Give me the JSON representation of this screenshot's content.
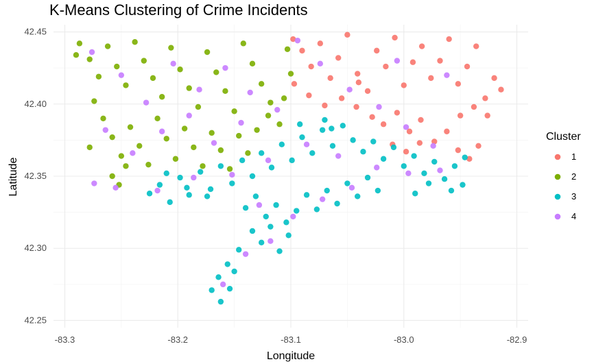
{
  "chart_data": {
    "type": "scatter",
    "title": "K-Means Clustering of Crime Incidents",
    "xlabel": "Longitude",
    "ylabel": "Latitude",
    "xlim": [
      -83.31,
      -82.89
    ],
    "ylim": [
      42.245,
      42.455
    ],
    "x_ticks": [
      -83.3,
      -83.2,
      -83.1,
      -83.0,
      -82.9
    ],
    "y_ticks": [
      42.25,
      42.3,
      42.35,
      42.4,
      42.45
    ],
    "x_tick_labels": [
      "-83.3",
      "-83.2",
      "-83.1",
      "-83.0",
      "-82.9"
    ],
    "y_tick_labels": [
      "42.25",
      "42.30",
      "42.35",
      "42.40",
      "42.45"
    ],
    "grid": true,
    "legend": {
      "title": "Cluster",
      "position": "right",
      "entries": [
        {
          "label": "1",
          "color": "#F8766D"
        },
        {
          "label": "2",
          "color": "#7CAE00"
        },
        {
          "label": "3",
          "color": "#00BFC4"
        },
        {
          "label": "4",
          "color": "#C77CFF"
        }
      ]
    },
    "series": [
      {
        "name": "1",
        "color": "#F8766D",
        "points": [
          [
            -83.098,
            42.445
          ],
          [
            -83.09,
            42.437
          ],
          [
            -83.082,
            42.426
          ],
          [
            -83.074,
            42.442
          ],
          [
            -83.065,
            42.418
          ],
          [
            -83.058,
            42.432
          ],
          [
            -83.05,
            42.448
          ],
          [
            -83.041,
            42.421
          ],
          [
            -83.032,
            42.409
          ],
          [
            -83.024,
            42.437
          ],
          [
            -83.016,
            42.426
          ],
          [
            -83.008,
            42.446
          ],
          [
            -83.0,
            42.413
          ],
          [
            -82.992,
            42.429
          ],
          [
            -82.984,
            42.44
          ],
          [
            -82.976,
            42.418
          ],
          [
            -82.968,
            42.43
          ],
          [
            -82.96,
            42.445
          ],
          [
            -82.952,
            42.414
          ],
          [
            -82.944,
            42.426
          ],
          [
            -82.936,
            42.44
          ],
          [
            -82.928,
            42.404
          ],
          [
            -82.92,
            42.418
          ],
          [
            -82.914,
            42.41
          ],
          [
            -83.055,
            42.404
          ],
          [
            -83.042,
            42.398
          ],
          [
            -83.028,
            42.391
          ],
          [
            -83.018,
            42.386
          ],
          [
            -83.006,
            42.394
          ],
          [
            -82.995,
            42.381
          ],
          [
            -82.985,
            42.389
          ],
          [
            -82.973,
            42.374
          ],
          [
            -82.962,
            42.381
          ],
          [
            -82.952,
            42.368
          ],
          [
            -82.942,
            42.362
          ],
          [
            -82.934,
            42.371
          ],
          [
            -83.01,
            42.372
          ],
          [
            -82.998,
            42.367
          ],
          [
            -82.986,
            42.373
          ],
          [
            -83.07,
            42.399
          ],
          [
            -83.084,
            42.406
          ],
          [
            -83.097,
            42.414
          ],
          [
            -83.04,
            42.415
          ],
          [
            -82.95,
            42.392
          ],
          [
            -82.938,
            42.398
          ],
          [
            -82.926,
            42.392
          ]
        ]
      },
      {
        "name": "2",
        "color": "#7CAE00",
        "points": [
          [
            -83.287,
            42.442
          ],
          [
            -83.278,
            42.431
          ],
          [
            -83.27,
            42.419
          ],
          [
            -83.262,
            42.44
          ],
          [
            -83.254,
            42.426
          ],
          [
            -83.246,
            42.413
          ],
          [
            -83.238,
            42.443
          ],
          [
            -83.23,
            42.43
          ],
          [
            -83.222,
            42.418
          ],
          [
            -83.214,
            42.405
          ],
          [
            -83.206,
            42.439
          ],
          [
            -83.198,
            42.424
          ],
          [
            -83.19,
            42.411
          ],
          [
            -83.182,
            42.398
          ],
          [
            -83.174,
            42.436
          ],
          [
            -83.166,
            42.422
          ],
          [
            -83.158,
            42.409
          ],
          [
            -83.15,
            42.395
          ],
          [
            -83.142,
            42.442
          ],
          [
            -83.134,
            42.428
          ],
          [
            -83.126,
            42.414
          ],
          [
            -83.118,
            42.401
          ],
          [
            -83.11,
            42.386
          ],
          [
            -83.103,
            42.438
          ],
          [
            -83.1,
            42.421
          ],
          [
            -83.274,
            42.402
          ],
          [
            -83.266,
            42.39
          ],
          [
            -83.258,
            42.377
          ],
          [
            -83.25,
            42.364
          ],
          [
            -83.242,
            42.384
          ],
          [
            -83.234,
            42.371
          ],
          [
            -83.226,
            42.358
          ],
          [
            -83.218,
            42.39
          ],
          [
            -83.21,
            42.376
          ],
          [
            -83.202,
            42.362
          ],
          [
            -83.194,
            42.383
          ],
          [
            -83.186,
            42.37
          ],
          [
            -83.178,
            42.357
          ],
          [
            -83.17,
            42.38
          ],
          [
            -83.162,
            42.368
          ],
          [
            -83.154,
            42.355
          ],
          [
            -83.146,
            42.378
          ],
          [
            -83.138,
            42.366
          ],
          [
            -83.13,
            42.382
          ],
          [
            -83.258,
            42.35
          ],
          [
            -83.252,
            42.344
          ],
          [
            -83.246,
            42.357
          ],
          [
            -83.278,
            42.37
          ],
          [
            -83.29,
            42.434
          ],
          [
            -83.106,
            42.404
          ],
          [
            -83.12,
            42.392
          ]
        ]
      },
      {
        "name": "3",
        "color": "#00BFC4",
        "points": [
          [
            -83.225,
            42.338
          ],
          [
            -83.216,
            42.344
          ],
          [
            -83.207,
            42.332
          ],
          [
            -83.198,
            42.349
          ],
          [
            -83.19,
            42.337
          ],
          [
            -83.18,
            42.353
          ],
          [
            -83.171,
            42.341
          ],
          [
            -83.162,
            42.357
          ],
          [
            -83.152,
            42.345
          ],
          [
            -83.143,
            42.361
          ],
          [
            -83.134,
            42.35
          ],
          [
            -83.126,
            42.366
          ],
          [
            -83.117,
            42.356
          ],
          [
            -83.108,
            42.372
          ],
          [
            -83.099,
            42.361
          ],
          [
            -83.09,
            42.377
          ],
          [
            -83.081,
            42.366
          ],
          [
            -83.072,
            42.382
          ],
          [
            -83.063,
            42.371
          ],
          [
            -83.054,
            42.385
          ],
          [
            -83.045,
            42.375
          ],
          [
            -83.036,
            42.367
          ],
          [
            -83.027,
            42.374
          ],
          [
            -83.018,
            42.362
          ],
          [
            -83.009,
            42.37
          ],
          [
            -83.0,
            42.357
          ],
          [
            -82.991,
            42.364
          ],
          [
            -82.982,
            42.352
          ],
          [
            -82.973,
            42.36
          ],
          [
            -82.964,
            42.348
          ],
          [
            -82.955,
            42.357
          ],
          [
            -82.946,
            42.363
          ],
          [
            -83.14,
            42.328
          ],
          [
            -83.131,
            42.336
          ],
          [
            -83.122,
            42.322
          ],
          [
            -83.113,
            42.33
          ],
          [
            -83.104,
            42.318
          ],
          [
            -83.095,
            42.326
          ],
          [
            -83.086,
            42.337
          ],
          [
            -83.077,
            42.327
          ],
          [
            -83.068,
            42.34
          ],
          [
            -83.059,
            42.331
          ],
          [
            -83.05,
            42.345
          ],
          [
            -83.041,
            42.336
          ],
          [
            -83.032,
            42.349
          ],
          [
            -83.023,
            42.34
          ],
          [
            -83.134,
            42.312
          ],
          [
            -83.126,
            42.304
          ],
          [
            -83.118,
            42.315
          ],
          [
            -83.11,
            42.298
          ],
          [
            -83.102,
            42.309
          ],
          [
            -83.146,
            42.299
          ],
          [
            -83.156,
            42.289
          ],
          [
            -83.164,
            42.28
          ],
          [
            -83.17,
            42.271
          ],
          [
            -83.162,
            42.263
          ],
          [
            -83.154,
            42.272
          ],
          [
            -83.15,
            42.284
          ],
          [
            -82.99,
            42.338
          ],
          [
            -82.978,
            42.345
          ],
          [
            -82.958,
            42.34
          ],
          [
            -82.948,
            42.344
          ],
          [
            -83.064,
            42.383
          ],
          [
            -83.07,
            42.389
          ],
          [
            -83.092,
            42.386
          ],
          [
            -83.21,
            42.352
          ],
          [
            -83.192,
            42.342
          ],
          [
            -83.174,
            42.336
          ]
        ]
      },
      {
        "name": "4",
        "color": "#C77CFF",
        "points": [
          [
            -83.276,
            42.436
          ],
          [
            -83.25,
            42.42
          ],
          [
            -83.228,
            42.401
          ],
          [
            -83.204,
            42.428
          ],
          [
            -83.181,
            42.41
          ],
          [
            -83.158,
            42.425
          ],
          [
            -83.136,
            42.408
          ],
          [
            -83.112,
            42.396
          ],
          [
            -83.264,
            42.382
          ],
          [
            -83.24,
            42.366
          ],
          [
            -83.214,
            42.381
          ],
          [
            -83.19,
            42.392
          ],
          [
            -83.168,
            42.373
          ],
          [
            -83.144,
            42.387
          ],
          [
            -83.274,
            42.345
          ],
          [
            -83.255,
            42.342
          ],
          [
            -83.218,
            42.34
          ],
          [
            -83.186,
            42.349
          ],
          [
            -83.152,
            42.351
          ],
          [
            -83.12,
            42.361
          ],
          [
            -83.086,
            42.372
          ],
          [
            -83.058,
            42.364
          ],
          [
            -83.024,
            42.356
          ],
          [
            -82.996,
            42.352
          ],
          [
            -82.968,
            42.354
          ],
          [
            -83.128,
            42.33
          ],
          [
            -83.098,
            42.322
          ],
          [
            -83.072,
            42.334
          ],
          [
            -83.046,
            42.342
          ],
          [
            -83.118,
            42.305
          ],
          [
            -83.14,
            42.296
          ],
          [
            -83.16,
            42.275
          ],
          [
            -83.094,
            42.444
          ],
          [
            -83.074,
            42.428
          ],
          [
            -83.048,
            42.41
          ],
          [
            -83.022,
            42.398
          ],
          [
            -82.998,
            42.384
          ],
          [
            -82.974,
            42.371
          ],
          [
            -83.006,
            42.43
          ],
          [
            -82.962,
            42.42
          ]
        ]
      }
    ]
  }
}
